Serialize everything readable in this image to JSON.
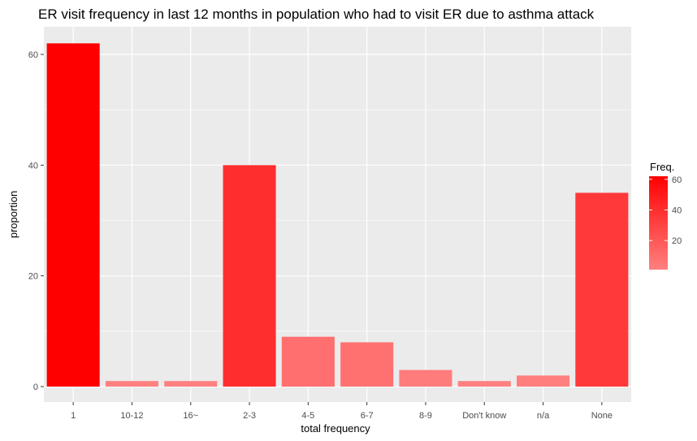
{
  "chart_data": {
    "type": "bar",
    "title": "ER visit frequency in last 12 months in population who had to visit ER due to asthma attack",
    "xlabel": "total frequency",
    "ylabel": "proportion",
    "categories": [
      "1",
      "10-12",
      "16~",
      "2-3",
      "4-5",
      "6-7",
      "8-9",
      "Don't know",
      "n/a",
      "None"
    ],
    "values": [
      62,
      1,
      1,
      40,
      9,
      8,
      3,
      1,
      2,
      35
    ],
    "ylim": [
      -3,
      65
    ],
    "yticks": [
      0,
      20,
      40,
      60
    ],
    "grid": true,
    "panel_background": "#EBEBEB",
    "gridline_color": "#FFFFFF",
    "legend": {
      "title": "Freq.",
      "placement": "right",
      "ticks": [
        20,
        40,
        60
      ],
      "range": [
        1,
        62
      ],
      "low_color": "#FF8080",
      "high_color": "#FF0000"
    }
  }
}
